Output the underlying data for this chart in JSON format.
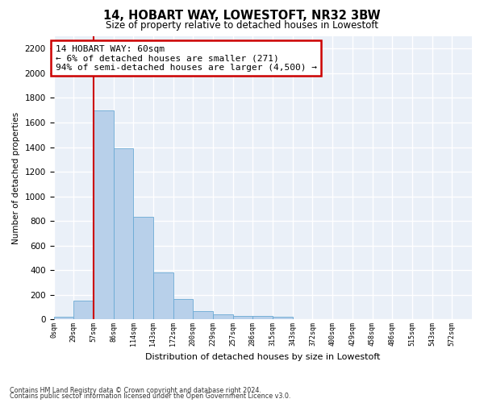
{
  "title": "14, HOBART WAY, LOWESTOFT, NR32 3BW",
  "subtitle": "Size of property relative to detached houses in Lowestoft",
  "xlabel": "Distribution of detached houses by size in Lowestoft",
  "ylabel": "Number of detached properties",
  "bar_values": [
    20,
    155,
    1700,
    1390,
    835,
    385,
    165,
    65,
    40,
    30,
    30,
    20,
    0,
    0,
    0,
    0,
    0,
    0,
    0,
    0,
    0
  ],
  "bar_labels": [
    "0sqm",
    "29sqm",
    "57sqm",
    "86sqm",
    "114sqm",
    "143sqm",
    "172sqm",
    "200sqm",
    "229sqm",
    "257sqm",
    "286sqm",
    "315sqm",
    "343sqm",
    "372sqm",
    "400sqm",
    "429sqm",
    "458sqm",
    "486sqm",
    "515sqm",
    "543sqm",
    "572sqm"
  ],
  "bar_color": "#b8d0ea",
  "bar_edgecolor": "#6aaad4",
  "vline_x_label": "57sqm",
  "vline_color": "#cc0000",
  "annotation_text": "14 HOBART WAY: 60sqm\n← 6% of detached houses are smaller (271)\n94% of semi-detached houses are larger (4,500) →",
  "annotation_box_color": "#ffffff",
  "annotation_box_edgecolor": "#cc0000",
  "ylim": [
    0,
    2300
  ],
  "yticks": [
    0,
    200,
    400,
    600,
    800,
    1000,
    1200,
    1400,
    1600,
    1800,
    2000,
    2200
  ],
  "bg_color": "#eaf0f8",
  "footnote1": "Contains HM Land Registry data © Crown copyright and database right 2024.",
  "footnote2": "Contains public sector information licensed under the Open Government Licence v3.0."
}
